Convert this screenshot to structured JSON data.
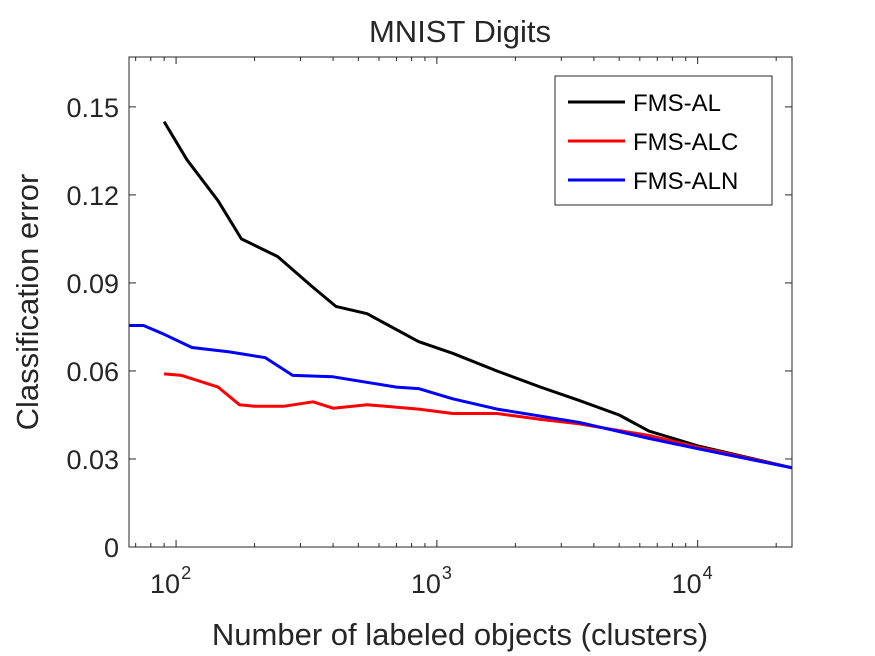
{
  "chart_data": {
    "type": "line",
    "title": "MNIST Digits",
    "xlabel": "Number of labeled objects (clusters)",
    "ylabel": "Classification error",
    "xscale": "log",
    "xlim": [
      66,
      23000
    ],
    "ylim": [
      0,
      0.167
    ],
    "yticks": [
      0,
      0.03,
      0.06,
      0.09,
      0.12,
      0.15
    ],
    "ytick_labels": [
      "0",
      "0.03",
      "0.06",
      "0.09",
      "0.12",
      "0.15"
    ],
    "xticks": [
      {
        "value": 100,
        "base": "10",
        "exp": "2"
      },
      {
        "value": 1000,
        "base": "10",
        "exp": "3"
      },
      {
        "value": 10000,
        "base": "10",
        "exp": "4"
      }
    ],
    "legend_position": "top-right",
    "series": [
      {
        "name": "FMS-AL",
        "color": "#000000",
        "points": [
          [
            90,
            0.145
          ],
          [
            110,
            0.132
          ],
          [
            145,
            0.118
          ],
          [
            178,
            0.105
          ],
          [
            245,
            0.099
          ],
          [
            330,
            0.089
          ],
          [
            410,
            0.082
          ],
          [
            540,
            0.0795
          ],
          [
            850,
            0.07
          ],
          [
            1150,
            0.066
          ],
          [
            1700,
            0.06
          ],
          [
            2500,
            0.0545
          ],
          [
            3500,
            0.05
          ],
          [
            5000,
            0.045
          ],
          [
            6500,
            0.0395
          ],
          [
            10000,
            0.0345
          ],
          [
            23000,
            0.027
          ]
        ]
      },
      {
        "name": "FMS-ALC",
        "color": "#ff0000",
        "points": [
          [
            90,
            0.059
          ],
          [
            105,
            0.0585
          ],
          [
            145,
            0.0545
          ],
          [
            175,
            0.0485
          ],
          [
            200,
            0.048
          ],
          [
            260,
            0.048
          ],
          [
            335,
            0.0495
          ],
          [
            400,
            0.0473
          ],
          [
            540,
            0.0485
          ],
          [
            850,
            0.047
          ],
          [
            1150,
            0.0455
          ],
          [
            1700,
            0.0455
          ],
          [
            2500,
            0.0435
          ],
          [
            3500,
            0.042
          ],
          [
            6500,
            0.038
          ],
          [
            10000,
            0.034
          ],
          [
            23000,
            0.027
          ]
        ]
      },
      {
        "name": "FMS-ALN",
        "color": "#0000ff",
        "points": [
          [
            66,
            0.0755
          ],
          [
            75,
            0.0755
          ],
          [
            90,
            0.0725
          ],
          [
            115,
            0.068
          ],
          [
            160,
            0.0665
          ],
          [
            220,
            0.0645
          ],
          [
            280,
            0.0585
          ],
          [
            400,
            0.058
          ],
          [
            550,
            0.056
          ],
          [
            700,
            0.0545
          ],
          [
            850,
            0.054
          ],
          [
            1150,
            0.0505
          ],
          [
            1700,
            0.047
          ],
          [
            3500,
            0.0425
          ],
          [
            6500,
            0.037
          ],
          [
            10000,
            0.0335
          ],
          [
            23000,
            0.027
          ]
        ]
      }
    ]
  }
}
